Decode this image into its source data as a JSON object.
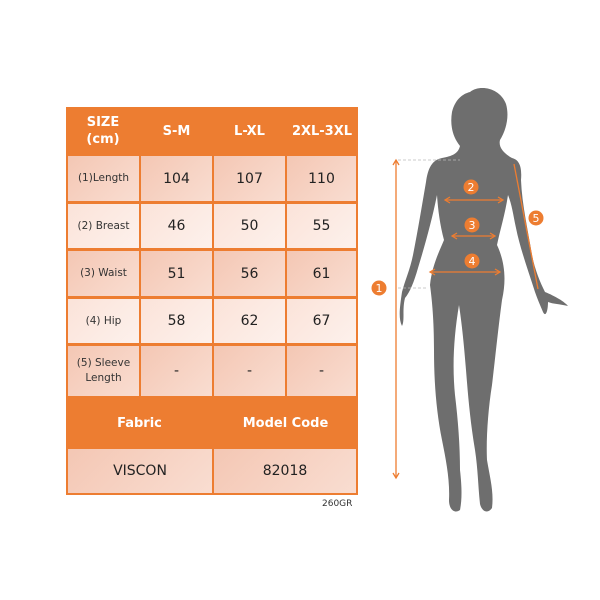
{
  "size_table": {
    "header": {
      "label": "SIZE\n(cm)",
      "label_line1": "SIZE",
      "label_line2": "(cm)",
      "sizes": [
        "S-M",
        "L-XL",
        "2XL-3XL"
      ]
    },
    "rows": [
      {
        "label": "(1)Length",
        "values": [
          "104",
          "107",
          "110"
        ]
      },
      {
        "label": "(2) Breast",
        "values": [
          "46",
          "50",
          "55"
        ]
      },
      {
        "label": "(3) Waist",
        "values": [
          "51",
          "56",
          "61"
        ]
      },
      {
        "label": "(4) Hip",
        "values": [
          "58",
          "62",
          "67"
        ]
      },
      {
        "label_line1": "(5) Sleeve",
        "label_line2": "Length",
        "values": [
          "-",
          "-",
          "-"
        ]
      }
    ],
    "fabric_label": "Fabric",
    "model_code_label": "Model Code",
    "fabric_value": "VISCON",
    "model_code_value": "82018"
  },
  "weight_note": "260GR",
  "figure": {
    "markers": [
      "1",
      "2",
      "3",
      "4",
      "5"
    ],
    "accent_color": "#ed7d31",
    "silhouette_color": "#6e6e6e"
  }
}
